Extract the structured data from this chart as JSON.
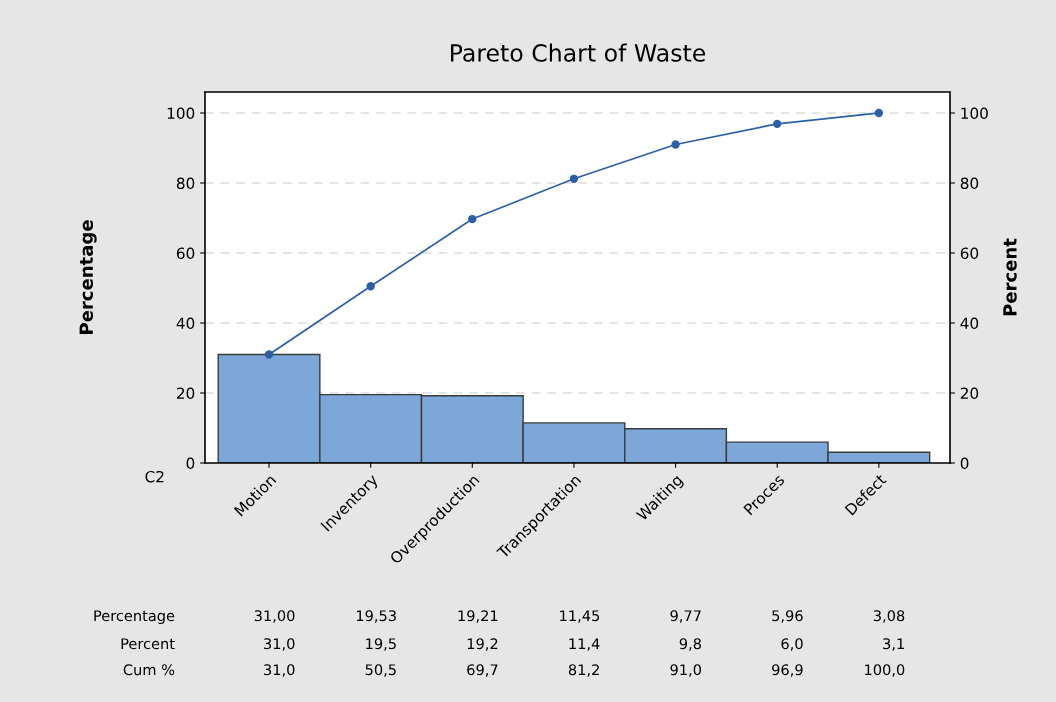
{
  "chart_data": {
    "type": "bar",
    "title": "Pareto Chart of Waste",
    "xlabel": "C2",
    "ylabel": "Percentage",
    "y2label": "Percent",
    "categories": [
      "Motion",
      "Inventory",
      "Overproduction",
      "Transportation",
      "Waiting",
      "Proces",
      "Defect"
    ],
    "series": [
      {
        "color": "#7da7d9",
        "values": [
          31.0,
          19.53,
          19.21,
          11.45,
          9.77,
          5.96,
          3.08
        ],
        "value_labels": [
          "31,00",
          "19,53",
          "19,21",
          "11,45",
          "9,77",
          "5,96",
          "3,08"
        ]
      },
      {
        "type": "line",
        "color": "#2b5fa8",
        "marker": "circle",
        "values": [
          31.0,
          50.5,
          69.7,
          81.2,
          91.0,
          96.9,
          100.0
        ],
        "value_labels": [
          "31,0",
          "50,5",
          "69,7",
          "81,2",
          "91,0",
          "96,9",
          "100,0"
        ]
      }
    ],
    "annotations": [
      "Percentage",
      "Percent",
      "Cum %",
      "31,0",
      "19,5",
      "19,2",
      "11,4",
      "9,8",
      "6,0",
      "3,1"
    ],
    "ylim": [
      0,
      106
    ],
    "yticks": [
      0,
      20,
      40,
      60,
      80,
      100
    ],
    "y2lim": [
      0,
      106
    ],
    "y2ticks": [
      0,
      20,
      40,
      60,
      80,
      100
    ],
    "grid": "y",
    "legend": false
  }
}
